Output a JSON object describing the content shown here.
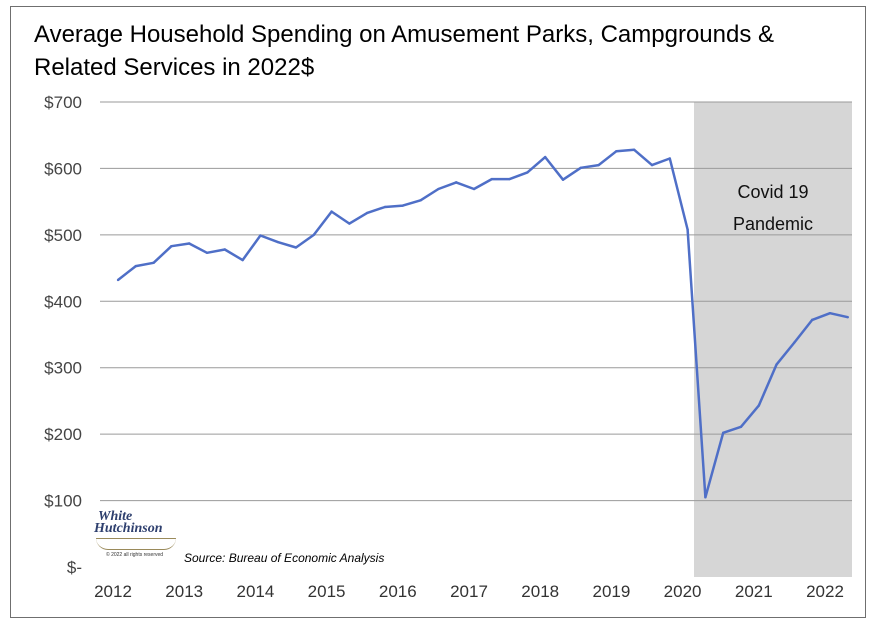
{
  "chart_data": {
    "type": "line",
    "title": "Average Household Spending on Amusement Parks, Campgrounds & Related Services in 2022$",
    "ylim": [
      0,
      700
    ],
    "y_ticks": [
      "$-",
      "$100",
      "$200",
      "$300",
      "$400",
      "$500",
      "$600",
      "$700"
    ],
    "x_ticks": [
      "2012",
      "2013",
      "2014",
      "2015",
      "2016",
      "2017",
      "2018",
      "2019",
      "2020",
      "2021",
      "2022"
    ],
    "x_range": [
      2012,
      2022.5
    ],
    "grid": true,
    "series": [
      {
        "color": "#4f6fc7",
        "x": [
          2012.0,
          2012.25,
          2012.5,
          2012.75,
          2013.0,
          2013.25,
          2013.5,
          2013.75,
          2014.0,
          2014.25,
          2014.5,
          2014.75,
          2015.0,
          2015.25,
          2015.5,
          2015.75,
          2016.0,
          2016.25,
          2016.5,
          2016.75,
          2017.0,
          2017.25,
          2017.5,
          2017.75,
          2018.0,
          2018.25,
          2018.5,
          2018.75,
          2019.0,
          2019.25,
          2019.5,
          2019.75,
          2020.0,
          2020.25,
          2020.5,
          2020.75,
          2021.0,
          2021.25,
          2021.5,
          2021.75,
          2022.0,
          2022.25
        ],
        "y": [
          432,
          453,
          458,
          483,
          487,
          473,
          478,
          462,
          499,
          489,
          481,
          500,
          535,
          517,
          533,
          542,
          544,
          552,
          569,
          579,
          569,
          584,
          584,
          594,
          617,
          583,
          601,
          605,
          626,
          628,
          605,
          615,
          508,
          105,
          202,
          211,
          243,
          305,
          338,
          372,
          382,
          376
        ]
      }
    ],
    "annotations": [
      {
        "label": "Covid 19 Pandemic",
        "lines": [
          "Covid 19",
          "Pandemic"
        ],
        "x_start": 2020.2,
        "x_end": 2022.5,
        "fill": "#d6d6d6"
      }
    ]
  },
  "footer": {
    "source": "Source: Bureau of Economic Analysis",
    "logo_line1": "White",
    "logo_line2": "Hutchinson",
    "logo_small": "© 2022 all rights reserved"
  }
}
